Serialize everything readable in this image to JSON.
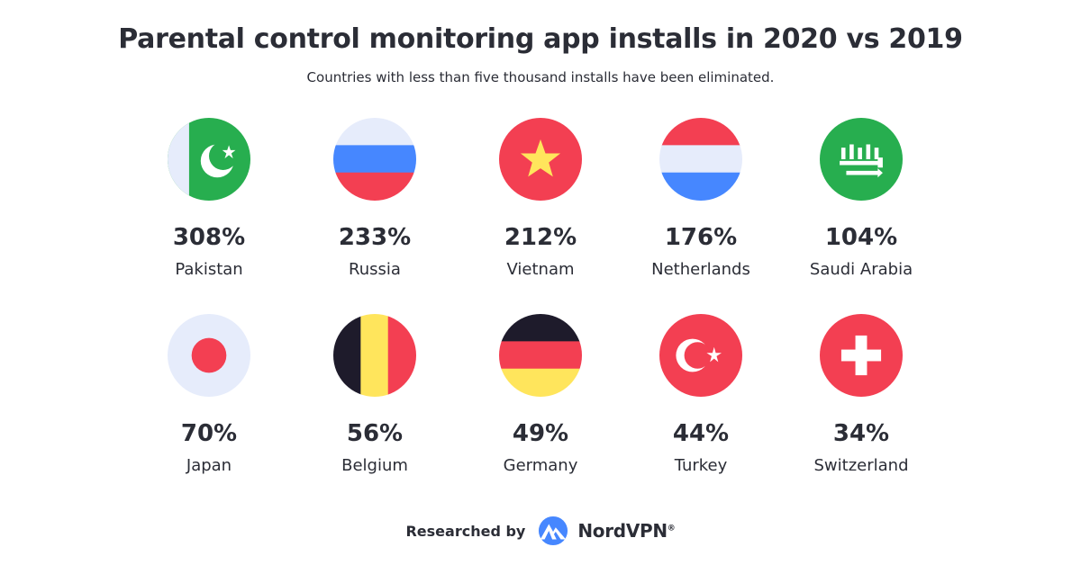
{
  "header": {
    "title": "Parental control monitoring app installs in 2020 vs 2019",
    "subtitle": "Countries with less than five thousand installs have been eliminated."
  },
  "chart_data": {
    "type": "table",
    "title": "Parental control monitoring app installs in 2020 vs 2019",
    "subtitle": "Countries with less than five thousand installs have been eliminated.",
    "unit": "%",
    "items": [
      {
        "country": "Pakistan",
        "value": 308,
        "label": "308%",
        "flag": "pakistan-flag-icon"
      },
      {
        "country": "Russia",
        "value": 233,
        "label": "233%",
        "flag": "russia-flag-icon"
      },
      {
        "country": "Vietnam",
        "value": 212,
        "label": "212%",
        "flag": "vietnam-flag-icon"
      },
      {
        "country": "Netherlands",
        "value": 176,
        "label": "176%",
        "flag": "netherlands-flag-icon"
      },
      {
        "country": "Saudi Arabia",
        "value": 104,
        "label": "104%",
        "flag": "saudi-arabia-flag-icon"
      },
      {
        "country": "Japan",
        "value": 70,
        "label": "70%",
        "flag": "japan-flag-icon"
      },
      {
        "country": "Belgium",
        "value": 56,
        "label": "56%",
        "flag": "belgium-flag-icon"
      },
      {
        "country": "Germany",
        "value": 49,
        "label": "49%",
        "flag": "germany-flag-icon"
      },
      {
        "country": "Turkey",
        "value": 44,
        "label": "44%",
        "flag": "turkey-flag-icon"
      },
      {
        "country": "Switzerland",
        "value": 34,
        "label": "34%",
        "flag": "switzerland-flag-icon"
      }
    ]
  },
  "colors": {
    "text": "#2b2d36",
    "red": "#f33f52",
    "green": "#27ae4f",
    "light": "#e6ecfb",
    "blue": "#4687ff",
    "yellow": "#ffe55c",
    "black": "#1e1b2b",
    "nordvpn_blue": "#4687ff"
  },
  "footer": {
    "researched_by": "Researched by",
    "brand": "NordVPN",
    "brand_mark": "®",
    "logo_icon": "nordvpn-mountain-logo-icon"
  }
}
